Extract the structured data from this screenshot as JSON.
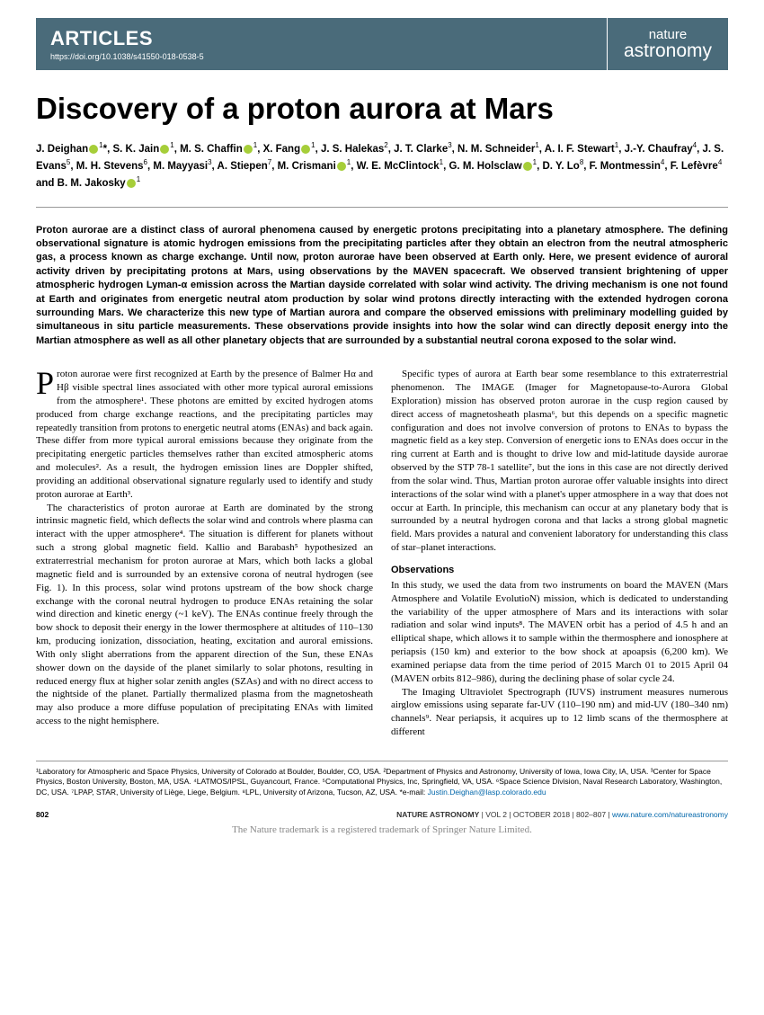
{
  "header": {
    "section_label": "ARTICLES",
    "doi_url": "https://doi.org/10.1038/s41550-018-0538-5",
    "journal_top": "nature",
    "journal_bottom": "astronomy"
  },
  "title": "Discovery of a proton aurora at Mars",
  "authors_html": "J. Deighan<span class=\"orcid\"></span><sup>1</sup>*, S. K. Jain<span class=\"orcid\"></span><sup>1</sup>, M. S. Chaffin<span class=\"orcid\"></span><sup>1</sup>, X. Fang<span class=\"orcid\"></span><sup>1</sup>, J. S. Halekas<sup>2</sup>, J. T. Clarke<sup>3</sup>, N. M. Schneider<sup>1</sup>, A. I. F. Stewart<sup>1</sup>, J.-Y. Chaufray<sup>4</sup>, J. S. Evans<sup>5</sup>, M. H. Stevens<sup>6</sup>, M. Mayyasi<sup>3</sup>, A. Stiepen<sup>7</sup>, M. Crismani<span class=\"orcid\"></span><sup>1</sup>, W. E. McClintock<sup>1</sup>, G. M. Holsclaw<span class=\"orcid\"></span><sup>1</sup>, D. Y. Lo<sup>8</sup>, F. Montmessin<sup>4</sup>, F. Lefèvre<sup>4</sup> and B. M. Jakosky<span class=\"orcid\"></span><sup>1</sup>",
  "abstract": "Proton aurorae are a distinct class of auroral phenomena caused by energetic protons precipitating into a planetary atmosphere. The defining observational signature is atomic hydrogen emissions from the precipitating particles after they obtain an electron from the neutral atmospheric gas, a process known as charge exchange. Until now, proton aurorae have been observed at Earth only. Here, we present evidence of auroral activity driven by precipitating protons at Mars, using observations by the MAVEN spacecraft. We observed transient brightening of upper atmospheric hydrogen Lyman-α emission across the Martian dayside correlated with solar wind activity. The driving mechanism is one not found at Earth and originates from energetic neutral atom production by solar wind protons directly interacting with the extended hydrogen corona surrounding Mars. We characterize this new type of Martian aurora and compare the observed emissions with preliminary modelling guided by simultaneous in situ particle measurements. These observations provide insights into how the solar wind can directly deposit energy into the Martian atmosphere as well as all other planetary objects that are surrounded by a substantial neutral corona exposed to the solar wind.",
  "body": {
    "p1": "Proton aurorae were first recognized at Earth by the presence of Balmer Hα and Hβ visible spectral lines associated with other more typical auroral emissions from the atmosphere¹. These photons are emitted by excited hydrogen atoms produced from charge exchange reactions, and the precipitating particles may repeatedly transition from protons to energetic neutral atoms (ENAs) and back again. These differ from more typical auroral emissions because they originate from the precipitating energetic particles themselves rather than excited atmospheric atoms and molecules². As a result, the hydrogen emission lines are Doppler shifted, providing an additional observational signature regularly used to identify and study proton aurorae at Earth³.",
    "p2": "The characteristics of proton aurorae at Earth are dominated by the strong intrinsic magnetic field, which deflects the solar wind and controls where plasma can interact with the upper atmosphere⁴. The situation is different for planets without such a strong global magnetic field. Kallio and Barabash⁵ hypothesized an extraterrestrial mechanism for proton aurorae at Mars, which both lacks a global magnetic field and is surrounded by an extensive corona of neutral hydrogen (see Fig. 1). In this process, solar wind protons upstream of the bow shock charge exchange with the coronal neutral hydrogen to produce ENAs retaining the solar wind direction and kinetic energy (~1 keV). The ENAs continue freely through the bow shock to deposit their energy in the lower thermosphere at altitudes of 110–130 km, producing ionization, dissociation, heating, excitation and auroral emissions. With only slight aberrations from the apparent direction of the Sun, these ENAs shower down on the dayside of the planet similarly to solar photons, resulting in reduced energy flux at higher solar zenith angles (SZAs) and with no direct access to the nightside of the planet. Partially thermalized plasma from the magnetosheath may also produce a more diffuse population of precipitating ENAs with limited access to the night hemisphere.",
    "p3": "Specific types of aurora at Earth bear some resemblance to this extraterrestrial phenomenon. The IMAGE (Imager for Magnetopause-to-Aurora Global Exploration) mission has observed proton aurorae in the cusp region caused by direct access of magnetosheath plasma⁶, but this depends on a specific magnetic configuration and does not involve conversion of protons to ENAs to bypass the magnetic field as a key step. Conversion of energetic ions to ENAs does occur in the ring current at Earth and is thought to drive low and mid-latitude dayside aurorae observed by the STP 78-1 satellite⁷, but the ions in this case are not directly derived from the solar wind. Thus, Martian proton aurorae offer valuable insights into direct interactions of the solar wind with a planet's upper atmosphere in a way that does not occur at Earth. In principle, this mechanism can occur at any planetary body that is surrounded by a neutral hydrogen corona and that lacks a strong global magnetic field. Mars provides a natural and convenient laboratory for understanding this class of star–planet interactions.",
    "obs_head": "Observations",
    "p4": "In this study, we used the data from two instruments on board the MAVEN (Mars Atmosphere and Volatile EvolutioN) mission, which is dedicated to understanding the variability of the upper atmosphere of Mars and its interactions with solar radiation and solar wind inputs⁸. The MAVEN orbit has a period of 4.5 h and an elliptical shape, which allows it to sample within the thermosphere and ionosphere at periapsis (150 km) and exterior to the bow shock at apoapsis (6,200 km). We examined periapse data from the time period of 2015 March 01 to 2015 April 04 (MAVEN orbits 812–986), during the declining phase of solar cycle 24.",
    "p5": "The Imaging Ultraviolet Spectrograph (IUVS) instrument measures numerous airglow emissions using separate far-UV (110–190 nm) and mid-UV (180–340 nm) channels⁹. Near periapsis, it acquires up to 12 limb scans of the thermosphere at different"
  },
  "affiliations": "¹Laboratory for Atmospheric and Space Physics, University of Colorado at Boulder, Boulder, CO, USA. ²Department of Physics and Astronomy, University of Iowa, Iowa City, IA, USA. ³Center for Space Physics, Boston University, Boston, MA, USA. ⁴LATMOS/IPSL, Guyancourt, France. ⁵Computational Physics, Inc, Springfield, VA, USA. ⁶Space Science Division, Naval Research Laboratory, Washington, DC, USA. ⁷LPAP, STAR, University of Liège, Liege, Belgium. ⁸LPL, University of Arizona, Tucson, AZ, USA. *e-mail: ",
  "affil_email": "Justin.Deighan@lasp.colorado.edu",
  "footer": {
    "page": "802",
    "journal": "NATURE ASTRONOMY",
    "vol": " | VOL 2 | OCTOBER 2018 | 802–807 | ",
    "url": "www.nature.com/natureastronomy"
  },
  "trademark": "The Nature trademark is a registered trademark of Springer Nature Limited.",
  "colors": {
    "header_bg": "#4a6b7a",
    "link": "#0066aa",
    "orcid": "#a6ce39"
  }
}
